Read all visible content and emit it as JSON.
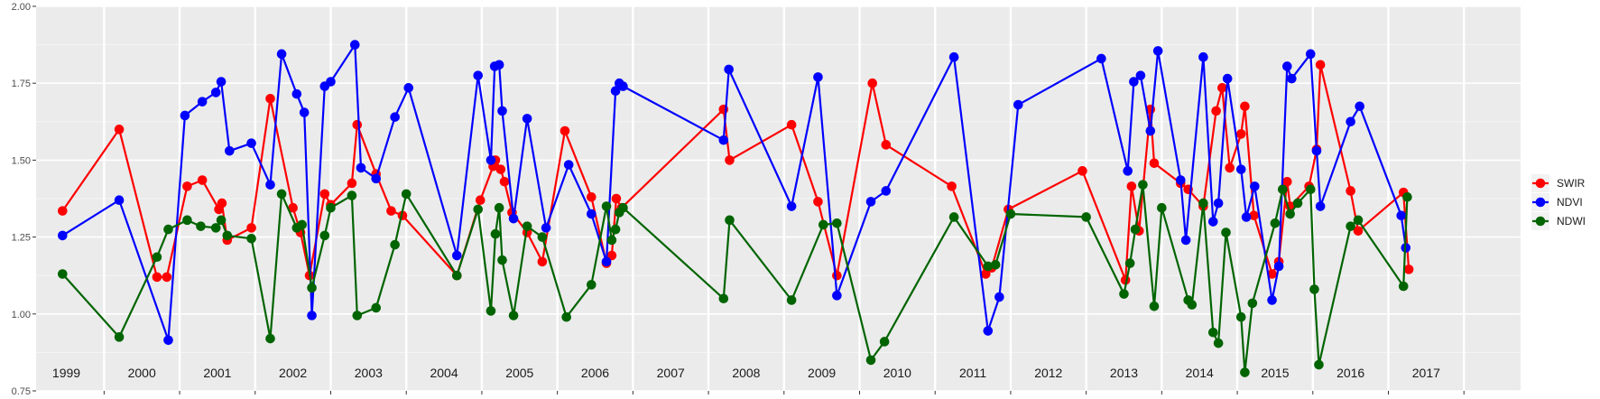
{
  "chart_data": {
    "type": "line",
    "title": "",
    "xlabel": "",
    "ylabel": "",
    "ylim": [
      0.75,
      2.0
    ],
    "yticks": [
      "0.75",
      "1.00",
      "1.25",
      "1.50",
      "1.75",
      "2.00"
    ],
    "xlim": [
      1998.6,
      2018.25
    ],
    "grid": true,
    "legend_position": "right",
    "years": [
      "1999",
      "2000",
      "2001",
      "2002",
      "2003",
      "2004",
      "2005",
      "2006",
      "2007",
      "2008",
      "2009",
      "2010",
      "2011",
      "2012",
      "2013",
      "2014",
      "2015",
      "2016",
      "2017"
    ],
    "series": [
      {
        "name": "SWIR",
        "color": "#ff0000",
        "points": [
          [
            1998.95,
            1.335
          ],
          [
            1999.7,
            1.6
          ],
          [
            2000.2,
            1.12
          ],
          [
            2000.33,
            1.12
          ],
          [
            2000.6,
            1.415
          ],
          [
            2000.8,
            1.435
          ],
          [
            2001.02,
            1.34
          ],
          [
            2001.06,
            1.36
          ],
          [
            2001.13,
            1.24
          ],
          [
            2001.45,
            1.28
          ],
          [
            2001.7,
            1.7
          ],
          [
            2002.0,
            1.345
          ],
          [
            2002.1,
            1.265
          ],
          [
            2002.22,
            1.125
          ],
          [
            2002.42,
            1.39
          ],
          [
            2002.5,
            1.355
          ],
          [
            2002.78,
            1.425
          ],
          [
            2002.85,
            1.615
          ],
          [
            2003.1,
            1.455
          ],
          [
            2003.3,
            1.335
          ],
          [
            2003.45,
            1.32
          ],
          [
            2004.17,
            1.125
          ],
          [
            2004.48,
            1.37
          ],
          [
            2004.65,
            1.48
          ],
          [
            2004.68,
            1.5
          ],
          [
            2004.75,
            1.47
          ],
          [
            2004.8,
            1.43
          ],
          [
            2004.9,
            1.33
          ],
          [
            2005.1,
            1.265
          ],
          [
            2005.3,
            1.17
          ],
          [
            2005.6,
            1.595
          ],
          [
            2005.95,
            1.38
          ],
          [
            2006.15,
            1.165
          ],
          [
            2006.22,
            1.19
          ],
          [
            2006.28,
            1.375
          ],
          [
            2006.35,
            1.345
          ],
          [
            2007.7,
            1.665
          ],
          [
            2007.78,
            1.5
          ],
          [
            2008.6,
            1.615
          ],
          [
            2008.95,
            1.365
          ],
          [
            2009.2,
            1.125
          ],
          [
            2009.67,
            1.75
          ],
          [
            2009.85,
            1.55
          ],
          [
            2010.72,
            1.415
          ],
          [
            2011.17,
            1.13
          ],
          [
            2011.25,
            1.15
          ],
          [
            2011.47,
            1.34
          ],
          [
            2012.45,
            1.465
          ],
          [
            2013.02,
            1.11
          ],
          [
            2013.1,
            1.415
          ],
          [
            2013.2,
            1.27
          ],
          [
            2013.35,
            1.665
          ],
          [
            2013.4,
            1.49
          ],
          [
            2013.75,
            1.425
          ],
          [
            2013.85,
            1.405
          ],
          [
            2014.05,
            1.35
          ],
          [
            2014.22,
            1.66
          ],
          [
            2014.3,
            1.735
          ],
          [
            2014.4,
            1.475
          ],
          [
            2014.55,
            1.585
          ],
          [
            2014.6,
            1.675
          ],
          [
            2014.72,
            1.32
          ],
          [
            2014.96,
            1.13
          ],
          [
            2015.05,
            1.17
          ],
          [
            2015.16,
            1.43
          ],
          [
            2015.2,
            1.35
          ],
          [
            2015.45,
            1.415
          ],
          [
            2015.55,
            1.535
          ],
          [
            2015.6,
            1.81
          ],
          [
            2016.0,
            1.4
          ],
          [
            2016.1,
            1.27
          ],
          [
            2016.7,
            1.395
          ],
          [
            2016.77,
            1.145
          ]
        ]
      },
      {
        "name": "NDVI",
        "color": "#0000ff",
        "points": [
          [
            1998.95,
            1.255
          ],
          [
            1999.7,
            1.37
          ],
          [
            2000.35,
            0.915
          ],
          [
            2000.57,
            1.645
          ],
          [
            2000.8,
            1.69
          ],
          [
            2000.98,
            1.72
          ],
          [
            2001.05,
            1.755
          ],
          [
            2001.16,
            1.53
          ],
          [
            2001.45,
            1.555
          ],
          [
            2001.7,
            1.42
          ],
          [
            2001.85,
            1.845
          ],
          [
            2002.05,
            1.715
          ],
          [
            2002.15,
            1.655
          ],
          [
            2002.25,
            0.995
          ],
          [
            2002.42,
            1.74
          ],
          [
            2002.5,
            1.755
          ],
          [
            2002.82,
            1.875
          ],
          [
            2002.9,
            1.475
          ],
          [
            2003.1,
            1.44
          ],
          [
            2003.35,
            1.64
          ],
          [
            2003.53,
            1.735
          ],
          [
            2004.17,
            1.19
          ],
          [
            2004.45,
            1.775
          ],
          [
            2004.62,
            1.5
          ],
          [
            2004.67,
            1.805
          ],
          [
            2004.73,
            1.81
          ],
          [
            2004.77,
            1.66
          ],
          [
            2004.92,
            1.31
          ],
          [
            2005.1,
            1.635
          ],
          [
            2005.35,
            1.28
          ],
          [
            2005.65,
            1.485
          ],
          [
            2005.95,
            1.325
          ],
          [
            2006.15,
            1.17
          ],
          [
            2006.27,
            1.725
          ],
          [
            2006.32,
            1.75
          ],
          [
            2006.37,
            1.74
          ],
          [
            2007.7,
            1.565
          ],
          [
            2007.77,
            1.795
          ],
          [
            2008.6,
            1.35
          ],
          [
            2008.95,
            1.77
          ],
          [
            2009.2,
            1.06
          ],
          [
            2009.65,
            1.365
          ],
          [
            2009.85,
            1.4
          ],
          [
            2010.75,
            1.835
          ],
          [
            2011.2,
            0.945
          ],
          [
            2011.35,
            1.055
          ],
          [
            2011.6,
            1.68
          ],
          [
            2012.7,
            1.83
          ],
          [
            2013.05,
            1.465
          ],
          [
            2013.13,
            1.755
          ],
          [
            2013.22,
            1.775
          ],
          [
            2013.35,
            1.595
          ],
          [
            2013.45,
            1.855
          ],
          [
            2013.75,
            1.435
          ],
          [
            2013.82,
            1.24
          ],
          [
            2014.05,
            1.835
          ],
          [
            2014.18,
            1.3
          ],
          [
            2014.25,
            1.36
          ],
          [
            2014.37,
            1.765
          ],
          [
            2014.55,
            1.47
          ],
          [
            2014.62,
            1.315
          ],
          [
            2014.73,
            1.415
          ],
          [
            2014.96,
            1.045
          ],
          [
            2015.05,
            1.155
          ],
          [
            2015.16,
            1.805
          ],
          [
            2015.22,
            1.765
          ],
          [
            2015.47,
            1.845
          ],
          [
            2015.55,
            1.53
          ],
          [
            2015.6,
            1.35
          ],
          [
            2016.0,
            1.625
          ],
          [
            2016.12,
            1.675
          ],
          [
            2016.67,
            1.32
          ],
          [
            2016.73,
            1.215
          ]
        ]
      },
      {
        "name": "NDWI",
        "color": "#006400",
        "points": [
          [
            1998.95,
            1.13
          ],
          [
            1999.7,
            0.925
          ],
          [
            2000.2,
            1.185
          ],
          [
            2000.35,
            1.275
          ],
          [
            2000.6,
            1.305
          ],
          [
            2000.78,
            1.285
          ],
          [
            2000.98,
            1.28
          ],
          [
            2001.05,
            1.305
          ],
          [
            2001.13,
            1.255
          ],
          [
            2001.45,
            1.245
          ],
          [
            2001.7,
            0.92
          ],
          [
            2001.85,
            1.39
          ],
          [
            2002.05,
            1.28
          ],
          [
            2002.12,
            1.29
          ],
          [
            2002.25,
            1.085
          ],
          [
            2002.42,
            1.255
          ],
          [
            2002.5,
            1.345
          ],
          [
            2002.78,
            1.385
          ],
          [
            2002.85,
            0.995
          ],
          [
            2003.1,
            1.02
          ],
          [
            2003.35,
            1.225
          ],
          [
            2003.5,
            1.39
          ],
          [
            2004.17,
            1.125
          ],
          [
            2004.45,
            1.34
          ],
          [
            2004.62,
            1.01
          ],
          [
            2004.68,
            1.26
          ],
          [
            2004.73,
            1.345
          ],
          [
            2004.77,
            1.175
          ],
          [
            2004.92,
            0.995
          ],
          [
            2005.1,
            1.285
          ],
          [
            2005.3,
            1.25
          ],
          [
            2005.62,
            0.99
          ],
          [
            2005.95,
            1.095
          ],
          [
            2006.15,
            1.35
          ],
          [
            2006.22,
            1.24
          ],
          [
            2006.27,
            1.275
          ],
          [
            2006.32,
            1.33
          ],
          [
            2006.37,
            1.345
          ],
          [
            2007.7,
            1.05
          ],
          [
            2007.78,
            1.305
          ],
          [
            2008.6,
            1.045
          ],
          [
            2009.02,
            1.29
          ],
          [
            2009.2,
            1.295
          ],
          [
            2009.65,
            0.85
          ],
          [
            2009.83,
            0.91
          ],
          [
            2010.75,
            1.315
          ],
          [
            2011.2,
            1.155
          ],
          [
            2011.3,
            1.16
          ],
          [
            2011.5,
            1.325
          ],
          [
            2012.5,
            1.315
          ],
          [
            2013.0,
            1.065
          ],
          [
            2013.08,
            1.165
          ],
          [
            2013.15,
            1.275
          ],
          [
            2013.25,
            1.42
          ],
          [
            2013.4,
            1.025
          ],
          [
            2013.5,
            1.345
          ],
          [
            2013.85,
            1.045
          ],
          [
            2013.9,
            1.03
          ],
          [
            2014.05,
            1.36
          ],
          [
            2014.18,
            0.94
          ],
          [
            2014.25,
            0.905
          ],
          [
            2014.35,
            1.265
          ],
          [
            2014.55,
            0.99
          ],
          [
            2014.6,
            0.81
          ],
          [
            2014.7,
            1.035
          ],
          [
            2015.0,
            1.295
          ],
          [
            2015.1,
            1.405
          ],
          [
            2015.2,
            1.325
          ],
          [
            2015.3,
            1.36
          ],
          [
            2015.47,
            1.405
          ],
          [
            2015.52,
            1.08
          ],
          [
            2015.58,
            0.835
          ],
          [
            2016.0,
            1.285
          ],
          [
            2016.1,
            1.305
          ],
          [
            2016.7,
            1.09
          ],
          [
            2016.75,
            1.38
          ]
        ]
      }
    ]
  }
}
